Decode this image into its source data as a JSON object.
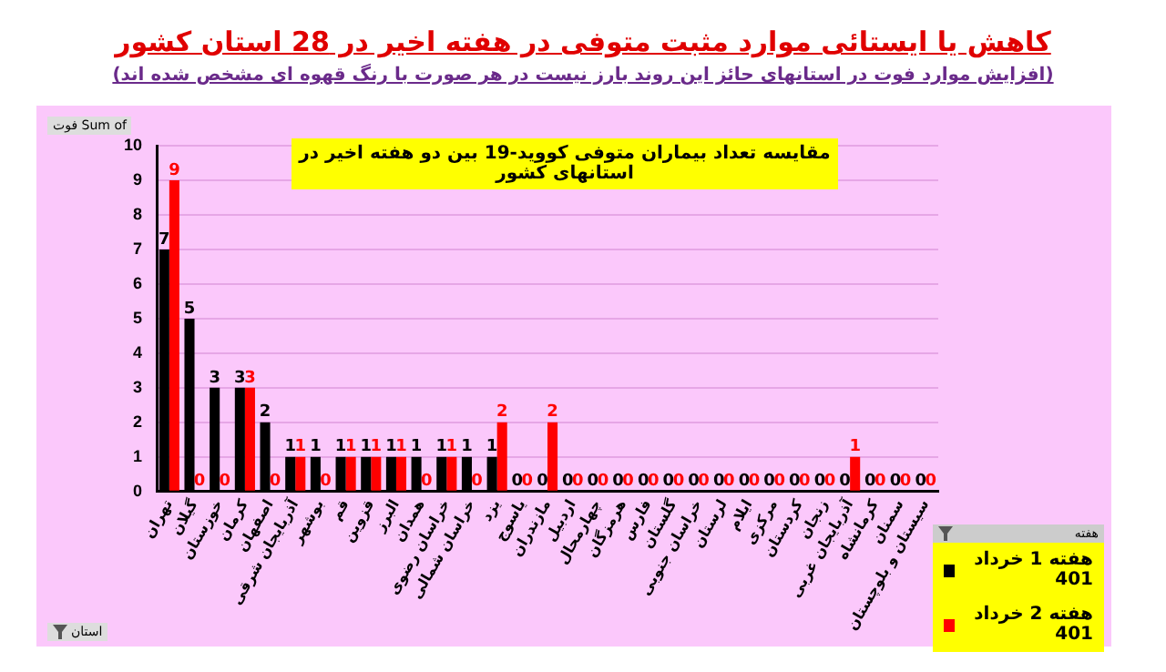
{
  "chart_data": {
    "type": "bar",
    "title": "کاهش یا ایستائی موارد مثبت متوفی در هفته اخیر در 28 استان کشور",
    "subtitle": "(افزایش موارد فوت در استانهای حائز این روند بارز نیست در هر صورت با رنگ قهوه ای مشخص شده اند)",
    "annotations": [
      "مقایسه تعداد بیماران متوفی کووید-19 بین دو هفته اخیر در استانهای کشور",
      "Sum of فوت",
      "استان"
    ],
    "legend_title": "هفته",
    "categories": [
      "تهران",
      "گیلان",
      "خوزستان",
      "کرمان",
      "اصفهان",
      "آذربایجان شرقی",
      "بوشهر",
      "قم",
      "قزوین",
      "البرز",
      "همدان",
      "خراسان رضوی",
      "خراسان شمالی",
      "یزد",
      "یاسوج",
      "مازندران",
      "اردبیل",
      "چهارمحال",
      "هرمزگان",
      "فارس",
      "گلستان",
      "خراسان جنوبی",
      "لرستان",
      "ایلام",
      "مرکزی",
      "کردستان",
      "زنجان",
      "آذربایجان غربی",
      "کرمانشاه",
      "سمنان",
      "سیستان و بلوچستان"
    ],
    "series": [
      {
        "name": "هفته 1 خرداد 401",
        "color": "#000000",
        "values": [
          7,
          5,
          3,
          3,
          2,
          1,
          1,
          1,
          1,
          1,
          1,
          1,
          1,
          1,
          0,
          0,
          0,
          0,
          0,
          0,
          0,
          0,
          0,
          0,
          0,
          0,
          0,
          0,
          0,
          0,
          0
        ]
      },
      {
        "name": "هفته 2 خرداد 401",
        "color": "#ff0000",
        "values": [
          9,
          0,
          0,
          3,
          0,
          1,
          0,
          1,
          1,
          1,
          0,
          1,
          0,
          2,
          0,
          2,
          0,
          0,
          0,
          0,
          0,
          0,
          0,
          0,
          0,
          0,
          0,
          1,
          0,
          0,
          0
        ]
      }
    ],
    "ylim": [
      0,
      10
    ],
    "yticks": [
      0,
      1,
      2,
      3,
      4,
      5,
      6,
      7,
      8,
      9,
      10
    ],
    "grid": "y",
    "legend": "bottom right",
    "data_labels": true
  }
}
